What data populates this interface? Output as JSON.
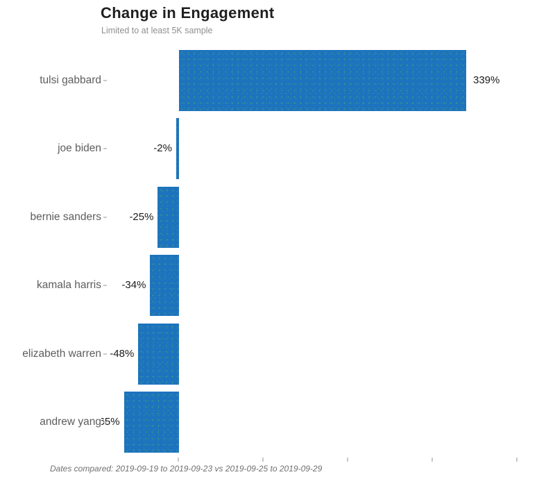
{
  "header": {
    "title": "Change in Engagement",
    "subtitle": "Limited to at least 5K sample"
  },
  "footer": {
    "caption": "Dates compared: 2019-09-19 to 2019-09-23 vs 2019-09-25 to 2019-09-29"
  },
  "colors": {
    "bar": "#1d73bd",
    "bar_speckle": "#4fa36a",
    "title_text": "#1f1f1f",
    "subtitle_text": "#8f8f8f",
    "category_text": "#5d5d5d",
    "value_text": "#1a1a1a",
    "caption_text": "#707070",
    "tick": "#c9c9c9",
    "background": "#ffffff"
  },
  "chart_data": {
    "type": "bar",
    "orientation": "horizontal",
    "title": "Change in Engagement",
    "subtitle": "Limited to at least 5K sample",
    "categories": [
      "tulsi gabbard",
      "joe biden",
      "bernie sanders",
      "kamala harris",
      "elizabeth warren",
      "andrew yang"
    ],
    "values": [
      339,
      -2,
      -25,
      -34,
      -48,
      -65
    ],
    "value_labels": [
      "339%",
      "-2%",
      "-25%",
      "-34%",
      "-48%",
      "-65%"
    ],
    "unit": "%",
    "xlabel": "",
    "ylabel": "",
    "xlim": [
      -83,
      435
    ],
    "x_ticks_pct": [
      0,
      100,
      200,
      300,
      400
    ],
    "x_tick_labels_visible": false,
    "grid": false,
    "legend": false,
    "caption": "Dates compared: 2019-09-19 to 2019-09-23 vs 2019-09-25 to 2019-09-29"
  }
}
